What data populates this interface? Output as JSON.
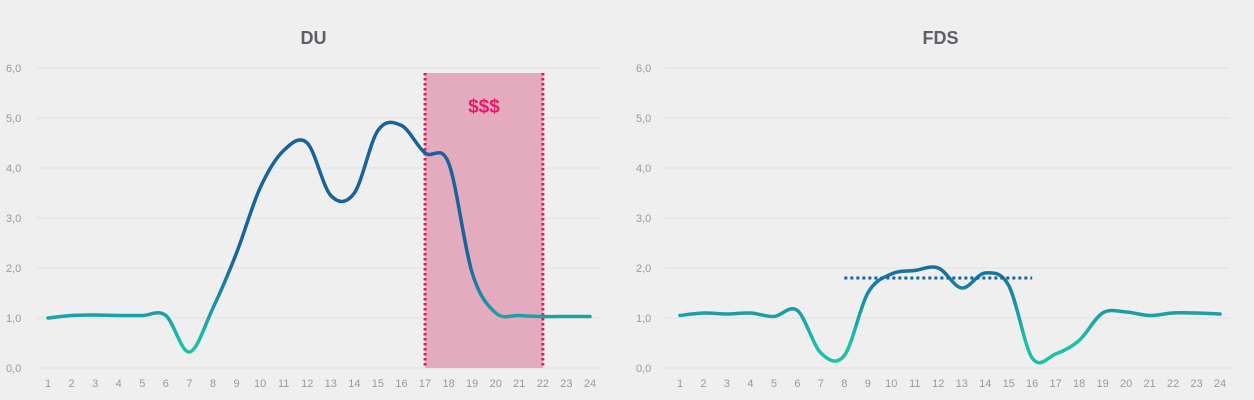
{
  "charts": [
    {
      "title": "DU"
    },
    {
      "title": "FDS"
    }
  ],
  "annotation": {
    "band_label": "$$$"
  },
  "colors": {
    "low": "#1fbfa8",
    "high": "#17649b",
    "band_fill": "#e3a6bc",
    "band_border": "#e0195f",
    "gridline": "#e2e2e2",
    "tick_text": "#9a9a9a",
    "title_text": "#5f5f66",
    "background": "#efefef"
  },
  "chart_data": [
    {
      "type": "line",
      "title": "DU",
      "xlabel": "",
      "ylabel": "",
      "x": [
        1,
        2,
        3,
        4,
        5,
        6,
        7,
        8,
        9,
        10,
        11,
        12,
        13,
        14,
        15,
        16,
        17,
        18,
        19,
        20,
        21,
        22,
        23,
        24
      ],
      "y_ticks": [
        "0,0",
        "1,0",
        "2,0",
        "3,0",
        "4,0",
        "5,0",
        "6,0"
      ],
      "ylim": [
        0,
        6
      ],
      "grid": true,
      "series": [
        {
          "name": "DU",
          "values": [
            1.0,
            1.05,
            1.06,
            1.05,
            1.05,
            1.05,
            0.32,
            1.2,
            2.3,
            3.6,
            4.35,
            4.5,
            3.45,
            3.5,
            4.75,
            4.85,
            4.3,
            4.1,
            1.9,
            1.1,
            1.05,
            1.03,
            1.03,
            1.03
          ]
        }
      ],
      "annotations": [
        {
          "type": "band",
          "x_start": 17,
          "x_end": 22,
          "label": "$$$"
        }
      ]
    },
    {
      "type": "line",
      "title": "FDS",
      "xlabel": "",
      "ylabel": "",
      "x": [
        1,
        2,
        3,
        4,
        5,
        6,
        7,
        8,
        9,
        10,
        11,
        12,
        13,
        14,
        15,
        16,
        17,
        18,
        19,
        20,
        21,
        22,
        23,
        24
      ],
      "y_ticks": [
        "0,0",
        "1,0",
        "2,0",
        "3,0",
        "4,0",
        "5,0",
        "6,0"
      ],
      "ylim": [
        0,
        6
      ],
      "grid": true,
      "series": [
        {
          "name": "FDS",
          "values": [
            1.05,
            1.1,
            1.08,
            1.1,
            1.03,
            1.15,
            0.3,
            0.25,
            1.5,
            1.88,
            1.95,
            2.0,
            1.6,
            1.9,
            1.65,
            0.2,
            0.28,
            0.55,
            1.1,
            1.12,
            1.05,
            1.1,
            1.1,
            1.08
          ]
        }
      ],
      "annotations": [
        {
          "type": "hline",
          "y": 1.8,
          "x_start": 8,
          "x_end": 16,
          "style": "dotted"
        }
      ]
    }
  ]
}
